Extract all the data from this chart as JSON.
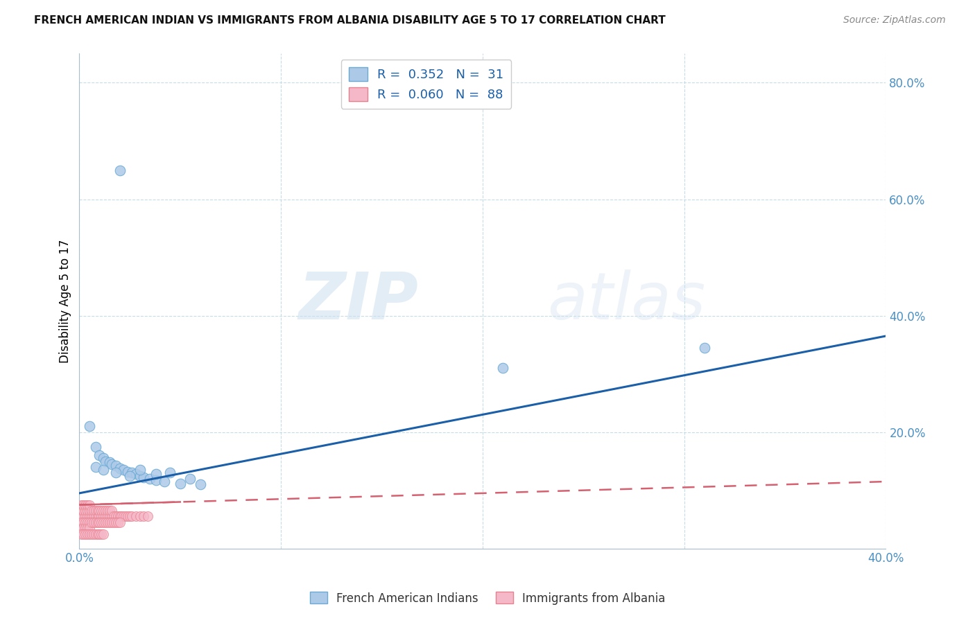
{
  "title": "FRENCH AMERICAN INDIAN VS IMMIGRANTS FROM ALBANIA DISABILITY AGE 5 TO 17 CORRELATION CHART",
  "source": "Source: ZipAtlas.com",
  "ylabel": "Disability Age 5 to 17",
  "xlim": [
    0.0,
    0.4
  ],
  "ylim": [
    0.0,
    0.85
  ],
  "xticks": [
    0.0,
    0.1,
    0.2,
    0.3,
    0.4
  ],
  "yticks": [
    0.2,
    0.4,
    0.6,
    0.8
  ],
  "ytick_labels": [
    "20.0%",
    "40.0%",
    "60.0%",
    "80.0%"
  ],
  "xtick_labels": [
    "0.0%",
    "",
    "",
    "",
    "40.0%"
  ],
  "blue_color": "#adc9e8",
  "blue_edge": "#6aaad4",
  "pink_color": "#f5b8c8",
  "pink_edge": "#e8808e",
  "blue_line_color": "#1a5fa8",
  "pink_line_color": "#d46070",
  "legend_blue_label": "R =  0.352   N =  31",
  "legend_pink_label": "R =  0.060   N =  88",
  "legend_bottom_blue": "French American Indians",
  "legend_bottom_pink": "Immigrants from Albania",
  "watermark_zip": "ZIP",
  "watermark_atlas": "atlas",
  "blue_scatter_x": [
    0.005,
    0.008,
    0.01,
    0.012,
    0.013,
    0.015,
    0.016,
    0.018,
    0.02,
    0.022,
    0.024,
    0.026,
    0.028,
    0.03,
    0.032,
    0.035,
    0.038,
    0.042,
    0.05,
    0.06,
    0.008,
    0.012,
    0.018,
    0.025,
    0.03,
    0.038,
    0.045,
    0.055,
    0.21,
    0.31,
    0.02
  ],
  "blue_scatter_y": [
    0.21,
    0.175,
    0.16,
    0.155,
    0.15,
    0.148,
    0.145,
    0.142,
    0.138,
    0.135,
    0.132,
    0.13,
    0.128,
    0.125,
    0.122,
    0.12,
    0.118,
    0.115,
    0.112,
    0.11,
    0.14,
    0.135,
    0.13,
    0.125,
    0.135,
    0.128,
    0.13,
    0.12,
    0.31,
    0.345,
    0.65
  ],
  "pink_scatter_x": [
    0.001,
    0.001,
    0.001,
    0.002,
    0.002,
    0.002,
    0.003,
    0.003,
    0.003,
    0.004,
    0.004,
    0.004,
    0.005,
    0.005,
    0.005,
    0.006,
    0.006,
    0.007,
    0.007,
    0.008,
    0.008,
    0.009,
    0.009,
    0.01,
    0.01,
    0.011,
    0.011,
    0.012,
    0.012,
    0.013,
    0.013,
    0.014,
    0.014,
    0.015,
    0.015,
    0.016,
    0.016,
    0.017,
    0.018,
    0.019,
    0.02,
    0.021,
    0.022,
    0.023,
    0.024,
    0.025,
    0.026,
    0.028,
    0.03,
    0.032,
    0.034,
    0.001,
    0.001,
    0.002,
    0.002,
    0.003,
    0.003,
    0.004,
    0.004,
    0.005,
    0.005,
    0.006,
    0.007,
    0.008,
    0.009,
    0.01,
    0.011,
    0.012,
    0.013,
    0.014,
    0.015,
    0.016,
    0.017,
    0.018,
    0.019,
    0.02,
    0.001,
    0.002,
    0.003,
    0.004,
    0.005,
    0.006,
    0.007,
    0.008,
    0.009,
    0.01,
    0.011,
    0.012
  ],
  "pink_scatter_y": [
    0.055,
    0.065,
    0.075,
    0.055,
    0.065,
    0.075,
    0.055,
    0.065,
    0.075,
    0.055,
    0.065,
    0.075,
    0.055,
    0.065,
    0.075,
    0.055,
    0.065,
    0.055,
    0.065,
    0.055,
    0.065,
    0.055,
    0.065,
    0.055,
    0.065,
    0.055,
    0.065,
    0.055,
    0.065,
    0.055,
    0.065,
    0.055,
    0.065,
    0.055,
    0.065,
    0.055,
    0.065,
    0.055,
    0.055,
    0.055,
    0.055,
    0.055,
    0.055,
    0.055,
    0.055,
    0.055,
    0.055,
    0.055,
    0.055,
    0.055,
    0.055,
    0.045,
    0.035,
    0.045,
    0.035,
    0.045,
    0.035,
    0.045,
    0.035,
    0.045,
    0.035,
    0.045,
    0.045,
    0.045,
    0.045,
    0.045,
    0.045,
    0.045,
    0.045,
    0.045,
    0.045,
    0.045,
    0.045,
    0.045,
    0.045,
    0.045,
    0.025,
    0.025,
    0.025,
    0.025,
    0.025,
    0.025,
    0.025,
    0.025,
    0.025,
    0.025,
    0.025,
    0.025
  ],
  "blue_trend_x": [
    0.0,
    0.4
  ],
  "blue_trend_y": [
    0.095,
    0.365
  ],
  "pink_trend_x": [
    0.0,
    0.4
  ],
  "pink_trend_y": [
    0.075,
    0.115
  ]
}
